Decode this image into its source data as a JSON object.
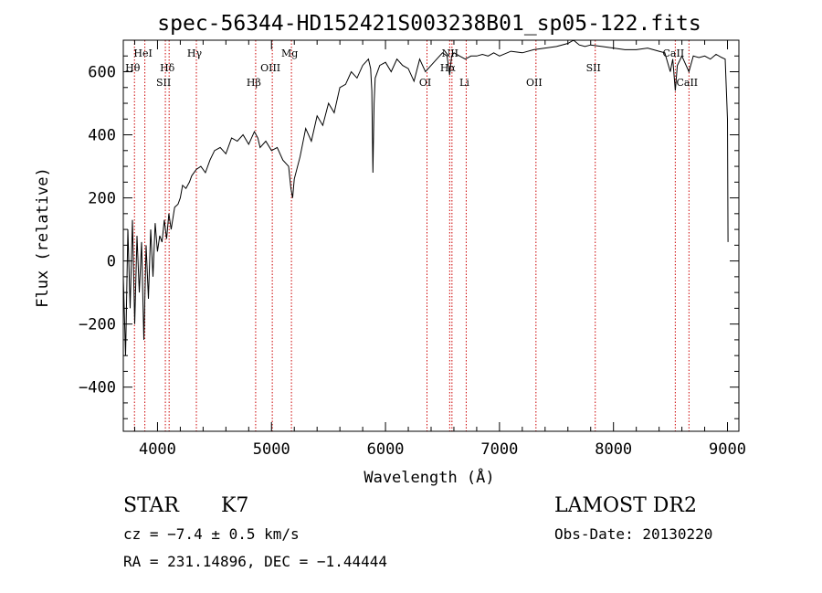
{
  "chart_data": {
    "type": "line",
    "title": "spec-56344-HD152421S003238B01_sp05-122.fits",
    "xlabel": "Wavelength (Å)",
    "ylabel": "Flux (relative)",
    "xlim": [
      3700,
      9100
    ],
    "ylim": [
      -540,
      700
    ],
    "x_ticks": [
      4000,
      5000,
      6000,
      7000,
      8000,
      9000
    ],
    "y_ticks": [
      -400,
      -200,
      0,
      200,
      400,
      600
    ],
    "x_tick_labels": [
      "4000",
      "5000",
      "6000",
      "7000",
      "8000",
      "9000"
    ],
    "y_tick_labels": [
      "−400",
      "−200",
      "0",
      "200",
      "400",
      "600"
    ],
    "grid": false,
    "series": [
      {
        "x": [
          3700,
          3720,
          3740,
          3760,
          3780,
          3800,
          3820,
          3840,
          3860,
          3880,
          3900,
          3920,
          3940,
          3960,
          3980,
          4000,
          4020,
          4040,
          4060,
          4080,
          4100,
          4120,
          4150,
          4180,
          4200,
          4220,
          4250,
          4280,
          4300,
          4340,
          4380,
          4420,
          4460,
          4500,
          4550,
          4600,
          4650,
          4700,
          4750,
          4800,
          4850,
          4880,
          4900,
          4950,
          5000,
          5050,
          5100,
          5150,
          5170,
          5185,
          5200,
          5250,
          5300,
          5350,
          5400,
          5450,
          5500,
          5550,
          5600,
          5650,
          5700,
          5750,
          5800,
          5850,
          5870,
          5880,
          5890,
          5896,
          5900,
          5910,
          5950,
          6000,
          6050,
          6100,
          6150,
          6200,
          6250,
          6300,
          6350,
          6400,
          6450,
          6500,
          6540,
          6563,
          6580,
          6600,
          6650,
          6700,
          6750,
          6800,
          6850,
          6900,
          6950,
          7000,
          7100,
          7200,
          7300,
          7400,
          7500,
          7600,
          7650,
          7700,
          7750,
          7800,
          7900,
          8000,
          8100,
          8200,
          8300,
          8400,
          8450,
          8498,
          8520,
          8542,
          8560,
          8600,
          8662,
          8700,
          8750,
          8800,
          8850,
          8900,
          8950,
          8980,
          9000,
          9005
        ],
        "values": [
          -50,
          -300,
          100,
          -150,
          130,
          -200,
          80,
          -100,
          60,
          -250,
          50,
          -120,
          100,
          -50,
          120,
          30,
          80,
          60,
          130,
          70,
          150,
          100,
          170,
          180,
          200,
          240,
          230,
          250,
          270,
          290,
          300,
          280,
          320,
          350,
          360,
          340,
          390,
          380,
          400,
          370,
          410,
          390,
          360,
          380,
          350,
          360,
          320,
          300,
          230,
          200,
          260,
          330,
          420,
          380,
          460,
          430,
          500,
          470,
          550,
          560,
          600,
          580,
          620,
          640,
          610,
          540,
          280,
          420,
          500,
          580,
          620,
          630,
          600,
          640,
          620,
          610,
          570,
          640,
          600,
          620,
          640,
          660,
          650,
          590,
          650,
          660,
          650,
          640,
          650,
          650,
          655,
          650,
          660,
          650,
          665,
          660,
          670,
          675,
          680,
          690,
          700,
          685,
          680,
          685,
          680,
          675,
          670,
          670,
          675,
          665,
          660,
          600,
          640,
          540,
          620,
          650,
          600,
          650,
          645,
          650,
          640,
          655,
          645,
          640,
          450,
          60
        ]
      }
    ],
    "line_markers": [
      {
        "label": "Hθ",
        "x": 3798,
        "row": "top-low"
      },
      {
        "label": "HeI",
        "x": 3889,
        "row": "top-high"
      },
      {
        "label": "Hδ",
        "x": 4102,
        "row": "top-low"
      },
      {
        "label": "SII",
        "x": 4069,
        "row": "top-mid"
      },
      {
        "label": "Hγ",
        "x": 4341,
        "row": "top-high"
      },
      {
        "label": "Hβ",
        "x": 4861,
        "row": "top-mid"
      },
      {
        "label": "OIII",
        "x": 5007,
        "row": "top-low"
      },
      {
        "label": "Mg",
        "x": 5175,
        "row": "top-high"
      },
      {
        "label": "OI",
        "x": 6364,
        "row": "top-mid"
      },
      {
        "label": "NII",
        "x": 6583,
        "row": "top-high"
      },
      {
        "label": "Hα",
        "x": 6563,
        "row": "top-low"
      },
      {
        "label": "Li",
        "x": 6708,
        "row": "top-mid"
      },
      {
        "label": "OII",
        "x": 7320,
        "row": "top-mid"
      },
      {
        "label": "SII",
        "x": 7840,
        "row": "top-low"
      },
      {
        "label": "CaII",
        "x": 8542,
        "row": "top-high"
      },
      {
        "label": "CaII",
        "x": 8662,
        "row": "top-mid"
      }
    ]
  },
  "info": {
    "class_label": "STAR",
    "subclass_label": "K7",
    "survey_label": "LAMOST DR2",
    "cz_line": "cz = −7.4 ± 0.5 km/s",
    "obs_date_line": "Obs-Date: 20130220",
    "radec_line": "RA = 231.14896, DEC =  −1.44444"
  },
  "colors": {
    "spectrum": "#000000",
    "marker_line": "#cc0000",
    "axes": "#000000"
  }
}
